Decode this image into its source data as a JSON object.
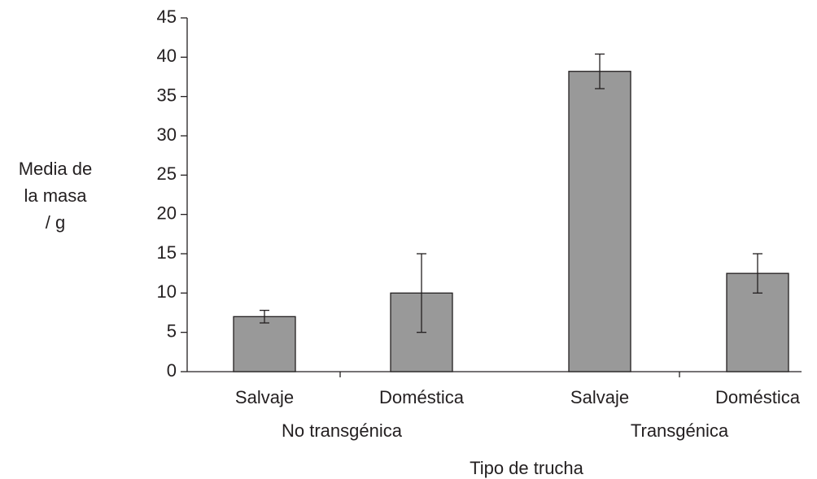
{
  "chart_data": {
    "type": "bar",
    "xlabel": "Tipo de trucha",
    "ylabel": [
      "Media de",
      "la masa",
      "/ g"
    ],
    "categories": [
      "Salvaje",
      "Doméstica",
      "Salvaje",
      "Doméstica"
    ],
    "groups": [
      "No transgénica",
      "Transgénica"
    ],
    "values": [
      7,
      10,
      38.2,
      12.5
    ],
    "errors": [
      0.8,
      5,
      2.2,
      2.5
    ],
    "color": "#999999",
    "ylim": [
      0,
      45
    ],
    "yticks": [
      0,
      5,
      10,
      15,
      20,
      25,
      30,
      35,
      40,
      45
    ]
  }
}
